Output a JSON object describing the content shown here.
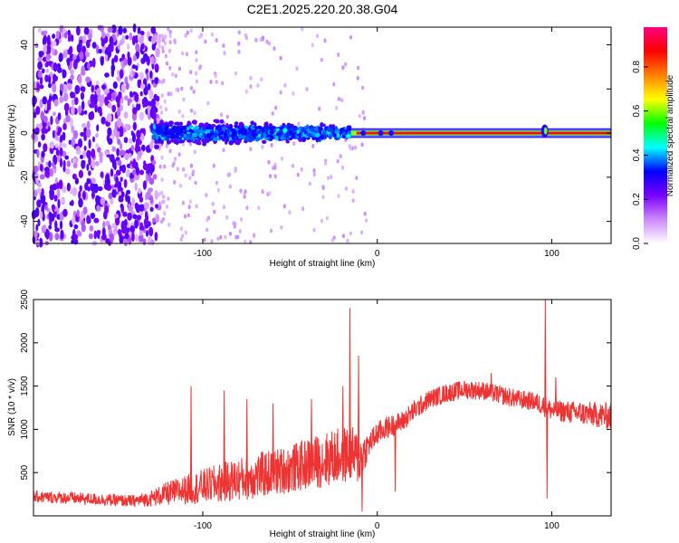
{
  "title": "C2E1.2025.220.20.38.G04",
  "chart_data": [
    {
      "type": "heatmap",
      "xlabel": "Height of straight line (km)",
      "ylabel": "Frequency (Hz)",
      "xlim": [
        -197,
        134
      ],
      "ylim": [
        -50,
        48
      ],
      "x_ticks": [
        -100,
        0,
        100
      ],
      "y_ticks": [
        -40,
        -20,
        0,
        20,
        40
      ],
      "colorbar": {
        "label": "Normalized spectral amplitude",
        "range": [
          0,
          0.98
        ],
        "ticks": [
          0.0,
          0.2,
          0.4,
          0.6,
          0.8
        ],
        "colors": [
          "#ffffff",
          "#cc88ff",
          "#7a00ff",
          "#0000ff",
          "#00ffff",
          "#00ff00",
          "#ffff00",
          "#ff8000",
          "#ff0000",
          "#ff0080"
        ]
      },
      "features": [
        {
          "name": "noise",
          "x": [
            -197,
            -125
          ],
          "y": [
            -50,
            48
          ],
          "amplitude": 0.2
        },
        {
          "name": "broad_band",
          "x": [
            -128,
            -15
          ],
          "y": [
            -8,
            7
          ],
          "amplitude": 0.4
        },
        {
          "name": "narrow_line",
          "x": [
            -15,
            134
          ],
          "y": [
            -1,
            1
          ],
          "amplitude": 0.9
        },
        {
          "name": "wiggle",
          "x": [
            95,
            98
          ],
          "y": [
            -2,
            3
          ],
          "amplitude": 0.6
        }
      ]
    },
    {
      "type": "line",
      "xlabel": "Height of straight line (km)",
      "ylabel": "SNR (10 * v/v)",
      "xlim": [
        -197,
        134
      ],
      "ylim": [
        0,
        2500
      ],
      "x_ticks": [
        -100,
        0,
        100
      ],
      "y_ticks": [
        500,
        1000,
        1500,
        2000,
        2500
      ],
      "color": "#ee3333",
      "series": [
        {
          "x": [
            -197,
            -180,
            -160,
            -140,
            -130,
            -120,
            -110,
            -100,
            -90,
            -80,
            -70,
            -60,
            -50,
            -40,
            -30,
            -20,
            -15,
            -10,
            -5,
            0,
            5,
            10,
            15,
            20,
            30,
            40,
            50,
            60,
            70,
            80,
            90,
            95,
            97,
            100,
            110,
            120,
            134
          ],
          "y": [
            220,
            210,
            190,
            170,
            200,
            260,
            300,
            340,
            380,
            420,
            460,
            500,
            540,
            600,
            650,
            700,
            720,
            650,
            820,
            950,
            1020,
            1050,
            1100,
            1200,
            1350,
            1420,
            1460,
            1450,
            1400,
            1350,
            1320,
            1280,
            1250,
            1220,
            1200,
            1180,
            1150
          ],
          "spread": [
            70,
            70,
            70,
            70,
            90,
            140,
            170,
            200,
            230,
            250,
            270,
            270,
            280,
            300,
            320,
            330,
            330,
            300,
            150,
            140,
            130,
            130,
            120,
            120,
            110,
            110,
            110,
            110,
            110,
            110,
            110,
            120,
            120,
            120,
            130,
            140,
            160
          ]
        }
      ],
      "spikes": [
        {
          "x": -107,
          "y": 1500
        },
        {
          "x": -88,
          "y": 1450
        },
        {
          "x": -75,
          "y": 1350
        },
        {
          "x": -60,
          "y": 1300
        },
        {
          "x": -38,
          "y": 1350
        },
        {
          "x": -20,
          "y": 1500
        },
        {
          "x": -16,
          "y": 2400
        },
        {
          "x": -11,
          "y": 1850
        },
        {
          "x": -9,
          "y": 50
        },
        {
          "x": 10,
          "y": 280
        },
        {
          "x": 96,
          "y": 2500
        },
        {
          "x": 97,
          "y": 200
        },
        {
          "x": 102,
          "y": 1600
        },
        {
          "x": 65,
          "y": 1650
        }
      ]
    }
  ]
}
